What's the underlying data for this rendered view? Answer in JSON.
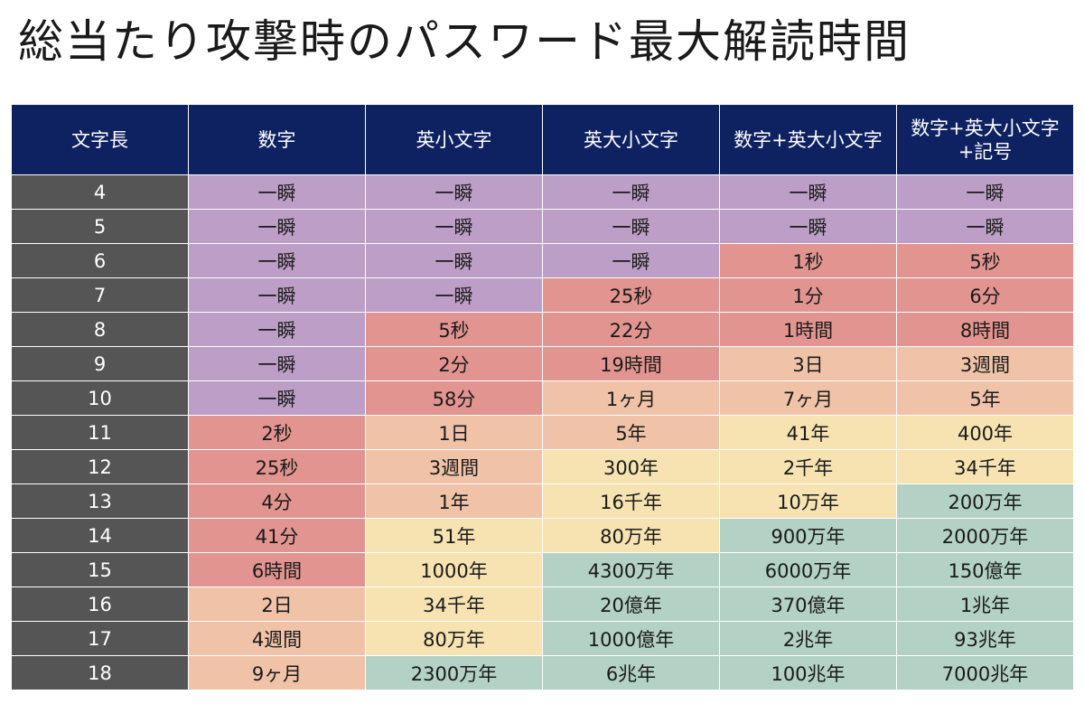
{
  "title": "総当たり攻撃時のパスワード最大解読時間",
  "colors": {
    "header_bg": "#0e2160",
    "length_col_bg": "#555555",
    "instant": "#bd9ec6",
    "short": "#e29590",
    "medium": "#f0c3a8",
    "long": "#f6e3b1",
    "very_long": "#b3d1c4"
  },
  "table": {
    "headers": [
      "文字長",
      "数字",
      "英小文字",
      "英大小文字",
      "数字+英大小文字",
      "数字+英大小文字+記号"
    ],
    "rows": [
      {
        "length": "4",
        "cells": [
          {
            "text": "一瞬",
            "level": "instant"
          },
          {
            "text": "一瞬",
            "level": "instant"
          },
          {
            "text": "一瞬",
            "level": "instant"
          },
          {
            "text": "一瞬",
            "level": "instant"
          },
          {
            "text": "一瞬",
            "level": "instant"
          }
        ]
      },
      {
        "length": "5",
        "cells": [
          {
            "text": "一瞬",
            "level": "instant"
          },
          {
            "text": "一瞬",
            "level": "instant"
          },
          {
            "text": "一瞬",
            "level": "instant"
          },
          {
            "text": "一瞬",
            "level": "instant"
          },
          {
            "text": "一瞬",
            "level": "instant"
          }
        ]
      },
      {
        "length": "6",
        "cells": [
          {
            "text": "一瞬",
            "level": "instant"
          },
          {
            "text": "一瞬",
            "level": "instant"
          },
          {
            "text": "一瞬",
            "level": "instant"
          },
          {
            "text": "1秒",
            "level": "short"
          },
          {
            "text": "5秒",
            "level": "short"
          }
        ]
      },
      {
        "length": "7",
        "cells": [
          {
            "text": "一瞬",
            "level": "instant"
          },
          {
            "text": "一瞬",
            "level": "instant"
          },
          {
            "text": "25秒",
            "level": "short"
          },
          {
            "text": "1分",
            "level": "short"
          },
          {
            "text": "6分",
            "level": "short"
          }
        ]
      },
      {
        "length": "8",
        "cells": [
          {
            "text": "一瞬",
            "level": "instant"
          },
          {
            "text": "5秒",
            "level": "short"
          },
          {
            "text": "22分",
            "level": "short"
          },
          {
            "text": "1時間",
            "level": "short"
          },
          {
            "text": "8時間",
            "level": "short"
          }
        ]
      },
      {
        "length": "9",
        "cells": [
          {
            "text": "一瞬",
            "level": "instant"
          },
          {
            "text": "2分",
            "level": "short"
          },
          {
            "text": "19時間",
            "level": "short"
          },
          {
            "text": "3日",
            "level": "medium"
          },
          {
            "text": "3週間",
            "level": "medium"
          }
        ]
      },
      {
        "length": "10",
        "cells": [
          {
            "text": "一瞬",
            "level": "instant"
          },
          {
            "text": "58分",
            "level": "short"
          },
          {
            "text": "1ヶ月",
            "level": "medium"
          },
          {
            "text": "7ヶ月",
            "level": "medium"
          },
          {
            "text": "5年",
            "level": "medium"
          }
        ]
      },
      {
        "length": "11",
        "cells": [
          {
            "text": "2秒",
            "level": "short"
          },
          {
            "text": "1日",
            "level": "medium"
          },
          {
            "text": "5年",
            "level": "medium"
          },
          {
            "text": "41年",
            "level": "long"
          },
          {
            "text": "400年",
            "level": "long"
          }
        ]
      },
      {
        "length": "12",
        "cells": [
          {
            "text": "25秒",
            "level": "short"
          },
          {
            "text": "3週間",
            "level": "medium"
          },
          {
            "text": "300年",
            "level": "long"
          },
          {
            "text": "2千年",
            "level": "long"
          },
          {
            "text": "34千年",
            "level": "long"
          }
        ]
      },
      {
        "length": "13",
        "cells": [
          {
            "text": "4分",
            "level": "short"
          },
          {
            "text": "1年",
            "level": "medium"
          },
          {
            "text": "16千年",
            "level": "long"
          },
          {
            "text": "10万年",
            "level": "long"
          },
          {
            "text": "200万年",
            "level": "very_long"
          }
        ]
      },
      {
        "length": "14",
        "cells": [
          {
            "text": "41分",
            "level": "short"
          },
          {
            "text": "51年",
            "level": "long"
          },
          {
            "text": "80万年",
            "level": "long"
          },
          {
            "text": "900万年",
            "level": "very_long"
          },
          {
            "text": "2000万年",
            "level": "very_long"
          }
        ]
      },
      {
        "length": "15",
        "cells": [
          {
            "text": "6時間",
            "level": "short"
          },
          {
            "text": "1000年",
            "level": "long"
          },
          {
            "text": "4300万年",
            "level": "very_long"
          },
          {
            "text": "6000万年",
            "level": "very_long"
          },
          {
            "text": "150億年",
            "level": "very_long"
          }
        ]
      },
      {
        "length": "16",
        "cells": [
          {
            "text": "2日",
            "level": "medium"
          },
          {
            "text": "34千年",
            "level": "long"
          },
          {
            "text": "20億年",
            "level": "very_long"
          },
          {
            "text": "370億年",
            "level": "very_long"
          },
          {
            "text": "1兆年",
            "level": "very_long"
          }
        ]
      },
      {
        "length": "17",
        "cells": [
          {
            "text": "4週間",
            "level": "medium"
          },
          {
            "text": "80万年",
            "level": "long"
          },
          {
            "text": "1000億年",
            "level": "very_long"
          },
          {
            "text": "2兆年",
            "level": "very_long"
          },
          {
            "text": "93兆年",
            "level": "very_long"
          }
        ]
      },
      {
        "length": "18",
        "cells": [
          {
            "text": "9ヶ月",
            "level": "medium"
          },
          {
            "text": "2300万年",
            "level": "very_long"
          },
          {
            "text": "6兆年",
            "level": "very_long"
          },
          {
            "text": "100兆年",
            "level": "very_long"
          },
          {
            "text": "7000兆年",
            "level": "very_long"
          }
        ]
      }
    ]
  }
}
